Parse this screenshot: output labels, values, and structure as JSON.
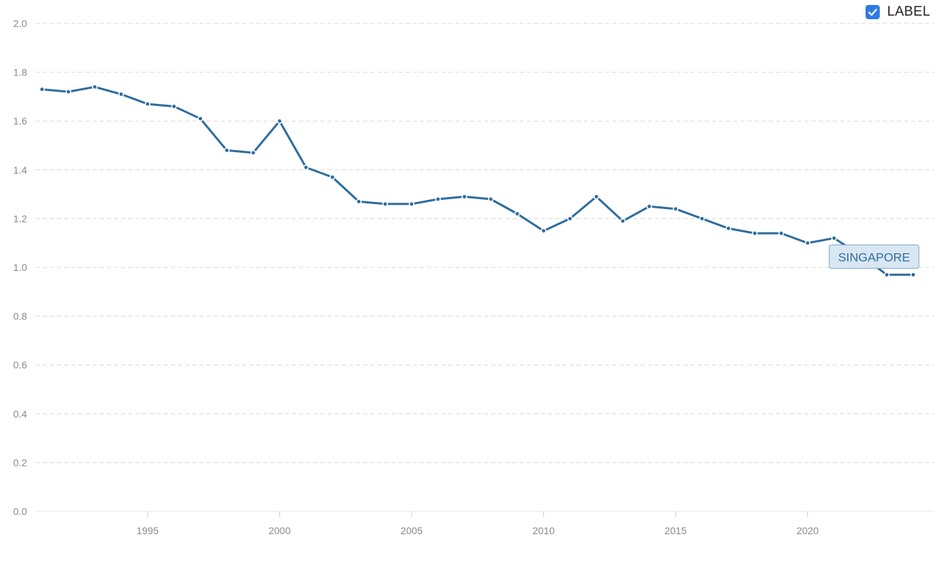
{
  "legend": {
    "label": "LABEL",
    "checked": true
  },
  "colors": {
    "series": "#2e6d9e",
    "checkbox": "#2f7be4",
    "tag_fill": "#d9e7f3",
    "tag_border": "#7aa6cc",
    "tag_text": "#2e6d9e"
  },
  "chart_data": {
    "type": "line",
    "title": "",
    "xlabel": "",
    "ylabel": "",
    "xlim": [
      1991,
      2024
    ],
    "ylim": [
      0,
      2.0
    ],
    "x_ticks": [
      1995,
      2000,
      2005,
      2010,
      2015,
      2020
    ],
    "y_ticks": [
      0.0,
      0.2,
      0.4,
      0.6,
      0.8,
      1.0,
      1.2,
      1.4,
      1.6,
      1.8,
      2.0
    ],
    "grid": true,
    "legend_position": "top-right",
    "series": [
      {
        "label": "SINGAPORE",
        "x": [
          1991,
          1992,
          1993,
          1994,
          1995,
          1996,
          1997,
          1998,
          1999,
          2000,
          2001,
          2002,
          2003,
          2004,
          2005,
          2006,
          2007,
          2008,
          2009,
          2010,
          2011,
          2012,
          2013,
          2014,
          2015,
          2016,
          2017,
          2018,
          2019,
          2020,
          2021,
          2022,
          2023,
          2024
        ],
        "y": [
          1.73,
          1.72,
          1.74,
          1.71,
          1.67,
          1.66,
          1.61,
          1.48,
          1.47,
          1.6,
          1.41,
          1.37,
          1.27,
          1.26,
          1.26,
          1.28,
          1.29,
          1.28,
          1.22,
          1.15,
          1.2,
          1.29,
          1.19,
          1.25,
          1.24,
          1.2,
          1.16,
          1.14,
          1.14,
          1.1,
          1.12,
          1.05,
          0.97,
          0.97
        ]
      }
    ]
  }
}
